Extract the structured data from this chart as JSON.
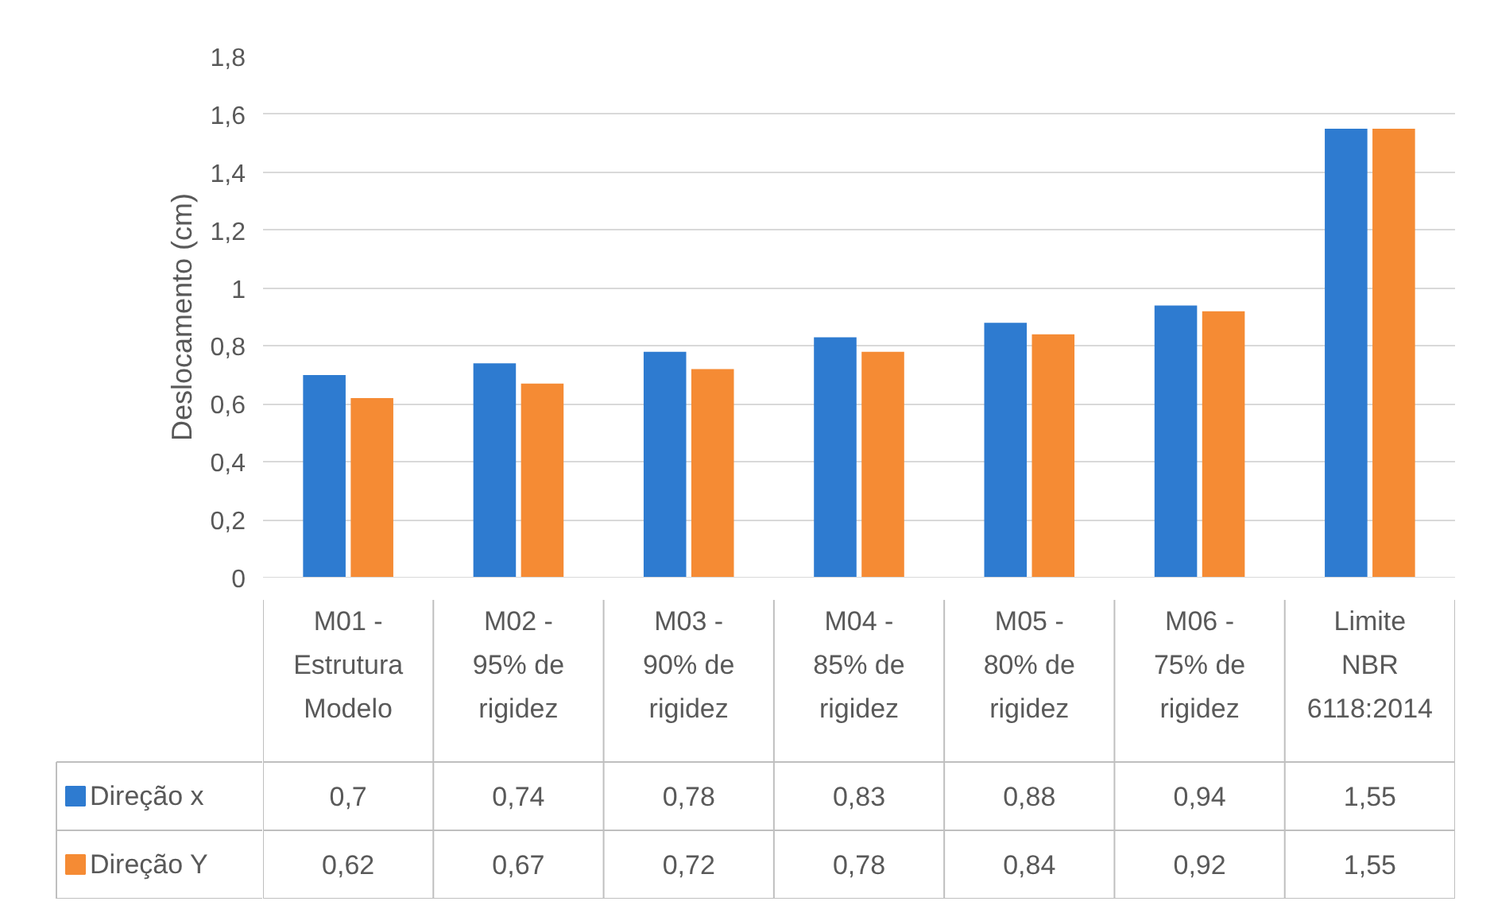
{
  "chart_data": {
    "type": "bar",
    "ylabel": "Deslocamento (cm)",
    "categories": [
      "M01 - Estrutura Modelo",
      "M02 - 95% de rigidez",
      "M03 - 90% de rigidez",
      "M04 - 85% de rigidez",
      "M05 - 80% de rigidez",
      "M06 - 75% de rigidez",
      "Limite NBR 6118:2014"
    ],
    "series": [
      {
        "name": "Direção x",
        "color": "#2e7bd0",
        "values": [
          0.7,
          0.74,
          0.78,
          0.83,
          0.88,
          0.94,
          1.55
        ],
        "value_labels": [
          "0,7",
          "0,74",
          "0,78",
          "0,83",
          "0,88",
          "0,94",
          "1,55"
        ]
      },
      {
        "name": "Direção Y",
        "color": "#f58b34",
        "values": [
          0.62,
          0.67,
          0.72,
          0.78,
          0.84,
          0.92,
          1.55
        ],
        "value_labels": [
          "0,62",
          "0,67",
          "0,72",
          "0,78",
          "0,84",
          "0,92",
          "1,55"
        ]
      }
    ],
    "ylim": [
      0,
      1.8
    ],
    "yticks": [
      0,
      {
        "value": 0.2,
        "label": "0,2"
      },
      {
        "value": 0.4,
        "label": "0,4"
      },
      {
        "value": 0.6,
        "label": "0,6"
      },
      {
        "value": 0.8,
        "label": "0,8"
      },
      1,
      {
        "value": 1.2,
        "label": "1,2"
      },
      {
        "value": 1.4,
        "label": "1,4"
      },
      {
        "value": 1.6,
        "label": "1,6"
      },
      {
        "value": 1.8,
        "label": "1,8"
      }
    ],
    "grid": "y",
    "legend": "bottom"
  }
}
